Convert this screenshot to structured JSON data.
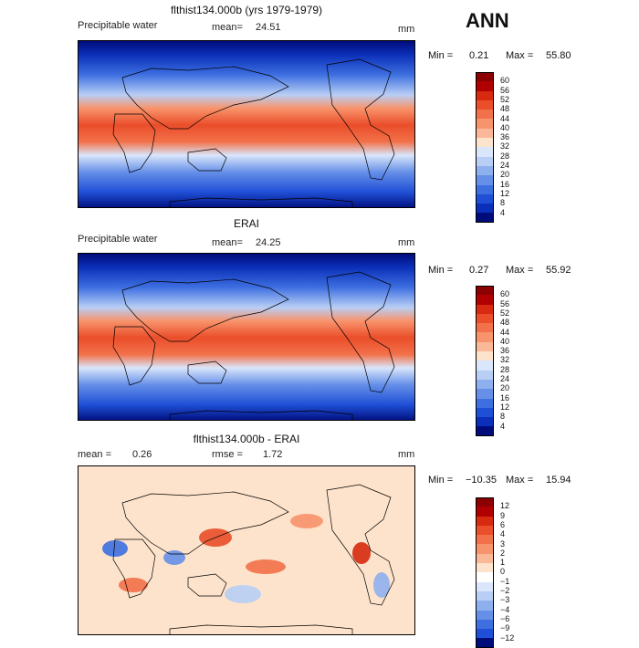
{
  "season": "ANN",
  "panels": [
    {
      "title": "flthist134.000b (yrs 1979-1979)",
      "left_label": "Precipitable water",
      "mean_label": "mean=",
      "mean_value": "24.51",
      "units": "mm",
      "min_label": "Min =",
      "min_value": "0.21",
      "max_label": "Max =",
      "max_value": "55.80",
      "colorbar_labels": [
        "60",
        "56",
        "52",
        "48",
        "44",
        "40",
        "36",
        "32",
        "28",
        "24",
        "20",
        "16",
        "12",
        "8",
        "4"
      ]
    },
    {
      "title": "ERAI",
      "left_label": "Precipitable water",
      "mean_label": "mean=",
      "mean_value": "24.25",
      "units": "mm",
      "min_label": "Min =",
      "min_value": "0.27",
      "max_label": "Max =",
      "max_value": "55.92",
      "colorbar_labels": [
        "60",
        "56",
        "52",
        "48",
        "44",
        "40",
        "36",
        "32",
        "28",
        "24",
        "20",
        "16",
        "12",
        "8",
        "4"
      ]
    },
    {
      "title": "flthist134.000b - ERAI",
      "mean_label": "mean =",
      "mean_value": "0.26",
      "rmse_label": "rmse =",
      "rmse_value": "1.72",
      "units": "mm",
      "min_label": "Min =",
      "min_value": "−10.35",
      "max_label": "Max =",
      "max_value": "15.94",
      "colorbar_labels": [
        "12",
        "9",
        "6",
        "4",
        "3",
        "2",
        "1",
        "0",
        "−1",
        "−2",
        "−3",
        "−4",
        "−6",
        "−9",
        "−12"
      ]
    }
  ],
  "colors": {
    "field_scale": [
      "#8b0000",
      "#b00000",
      "#d72a10",
      "#ea4e2a",
      "#f2714a",
      "#f8946c",
      "#fbb898",
      "#fde3cc",
      "#d9e6fb",
      "#b8cef5",
      "#8fb0ef",
      "#6690e8",
      "#3d6fe0",
      "#1f4fd6",
      "#0b2fb8",
      "#000c7a"
    ],
    "diff_scale": [
      "#8b0000",
      "#b00000",
      "#d72a10",
      "#ea4e2a",
      "#f2714a",
      "#f8946c",
      "#fbb898",
      "#fde3cc",
      "#ffffff",
      "#d9e6fb",
      "#b8cef5",
      "#8fb0ef",
      "#6690e8",
      "#3d6fe0",
      "#1f4fd6",
      "#000c7a"
    ]
  }
}
